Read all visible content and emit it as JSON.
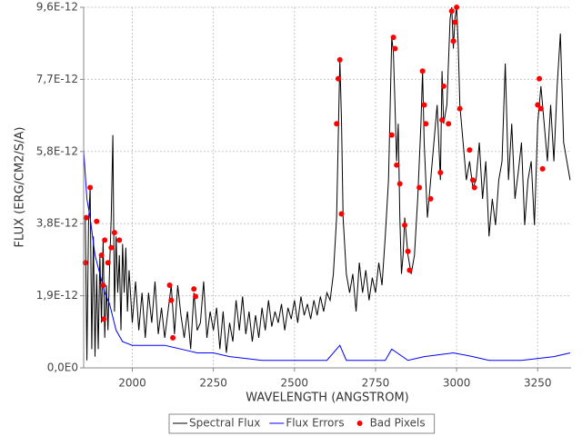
{
  "chart_data": {
    "type": "line",
    "xlabel": "WAVELENGTH (ANGSTROM)",
    "ylabel": "FLUX (ERG/CM2/S/A)",
    "xlim": [
      1850,
      3353
    ],
    "ylim": [
      0,
      9.6e-12
    ],
    "xticks": [
      2000,
      2250,
      2500,
      2750,
      3000,
      3250
    ],
    "yticks": [
      {
        "value": 0,
        "label": "0,0E0"
      },
      {
        "value": 1.92e-12,
        "label": "1,9E-12"
      },
      {
        "value": 3.84e-12,
        "label": "3,8E-12"
      },
      {
        "value": 5.76e-12,
        "label": "5,8E-12"
      },
      {
        "value": 7.68e-12,
        "label": "7,7E-12"
      },
      {
        "value": 9.6e-12,
        "label": "9,6E-12"
      }
    ],
    "grid": true,
    "legend": "bottom",
    "series": [
      {
        "name": "Spectral Flux",
        "type": "line",
        "color": "#000000",
        "x": [
          1855,
          1860,
          1865,
          1870,
          1875,
          1880,
          1885,
          1890,
          1895,
          1900,
          1905,
          1910,
          1915,
          1920,
          1925,
          1930,
          1935,
          1940,
          1945,
          1950,
          1955,
          1960,
          1965,
          1970,
          1975,
          1980,
          1985,
          1990,
          2000,
          2010,
          2020,
          2030,
          2040,
          2050,
          2060,
          2070,
          2080,
          2090,
          2100,
          2110,
          2120,
          2130,
          2140,
          2150,
          2160,
          2170,
          2180,
          2190,
          2200,
          2210,
          2220,
          2230,
          2240,
          2250,
          2260,
          2270,
          2280,
          2290,
          2300,
          2310,
          2320,
          2330,
          2340,
          2350,
          2360,
          2370,
          2380,
          2390,
          2400,
          2410,
          2420,
          2430,
          2440,
          2450,
          2460,
          2470,
          2480,
          2490,
          2500,
          2510,
          2520,
          2530,
          2540,
          2550,
          2560,
          2570,
          2580,
          2590,
          2600,
          2610,
          2620,
          2630,
          2640,
          2645,
          2650,
          2660,
          2670,
          2680,
          2690,
          2700,
          2710,
          2720,
          2730,
          2740,
          2750,
          2760,
          2770,
          2780,
          2790,
          2800,
          2805,
          2810,
          2815,
          2820,
          2825,
          2830,
          2835,
          2840,
          2850,
          2860,
          2870,
          2880,
          2890,
          2895,
          2900,
          2910,
          2920,
          2930,
          2940,
          2950,
          2955,
          2960,
          2970,
          2980,
          2985,
          2990,
          2995,
          3000,
          3005,
          3010,
          3020,
          3030,
          3040,
          3050,
          3060,
          3070,
          3080,
          3090,
          3100,
          3110,
          3120,
          3130,
          3140,
          3150,
          3160,
          3170,
          3180,
          3190,
          3200,
          3210,
          3220,
          3230,
          3240,
          3250,
          3260,
          3270,
          3280,
          3290,
          3300,
          3310,
          3320,
          3330,
          3340,
          3350
        ],
        "values": [
          4e-12,
          2e-13,
          3.8e-12,
          4.8e-12,
          5e-13,
          3.5e-12,
          3e-13,
          2.5e-12,
          5e-13,
          3e-12,
          1.2e-12,
          3.4e-12,
          8e-13,
          2.2e-12,
          1e-12,
          2.7e-12,
          4e-12,
          6.2e-12,
          1.5e-12,
          3.5e-12,
          2e-12,
          3e-12,
          1e-12,
          3.3e-12,
          2e-12,
          3.2e-12,
          1.5e-12,
          2.6e-12,
          1.2e-12,
          2.3e-12,
          1e-12,
          2e-12,
          8e-13,
          2e-12,
          1.2e-12,
          2.3e-12,
          9e-13,
          1.6e-12,
          8e-13,
          1.5e-12,
          2.2e-12,
          9e-13,
          2.2e-12,
          1.4e-12,
          8e-13,
          1.5e-12,
          5e-13,
          2e-12,
          1e-12,
          1.2e-12,
          2.3e-12,
          8e-13,
          1.5e-12,
          1e-12,
          1.6e-12,
          5e-13,
          1.5e-12,
          4e-13,
          1.2e-12,
          7e-13,
          1.8e-12,
          1e-12,
          1.9e-12,
          9e-13,
          1.5e-12,
          7e-13,
          1.4e-12,
          8e-13,
          1.6e-12,
          1e-12,
          1.8e-12,
          1.1e-12,
          1.5e-12,
          1.2e-12,
          1.7e-12,
          1e-12,
          1.6e-12,
          1.3e-12,
          1.8e-12,
          1.2e-12,
          1.9e-12,
          1.4e-12,
          1.7e-12,
          1.3e-12,
          1.8e-12,
          1.4e-12,
          1.9e-12,
          1.5e-12,
          2e-12,
          1.8e-12,
          2.5e-12,
          4e-12,
          8.2e-12,
          6.6e-12,
          4e-12,
          2.5e-12,
          2e-12,
          2.5e-12,
          1.5e-12,
          2.8e-12,
          2e-12,
          2.6e-12,
          1.8e-12,
          2.4e-12,
          2e-12,
          2.8e-12,
          2.2e-12,
          3.5e-12,
          5e-12,
          8.8e-12,
          8.4e-12,
          7e-12,
          5.5e-12,
          6.5e-12,
          4e-12,
          2.5e-12,
          3e-12,
          4e-12,
          3e-12,
          2.5e-12,
          3e-12,
          4.5e-12,
          6.5e-12,
          7.9e-12,
          6e-12,
          4e-12,
          5e-12,
          6e-12,
          7e-12,
          5e-12,
          7.9e-12,
          6.5e-12,
          7e-12,
          9.3e-12,
          9.6e-12,
          8.5e-12,
          9.3e-12,
          9.6e-12,
          8.6e-12,
          7e-12,
          6e-12,
          5e-12,
          5.5e-12,
          4.8e-12,
          5e-12,
          6e-12,
          4.5e-12,
          5.5e-12,
          3.5e-12,
          4.5e-12,
          3.8e-12,
          5e-12,
          5.5e-12,
          8.1e-12,
          5e-12,
          6.5e-12,
          4.5e-12,
          5.2e-12,
          6e-12,
          3.8e-12,
          5e-12,
          5.5e-12,
          3.8e-12,
          6.5e-12,
          7.5e-12,
          6.5e-12,
          5.5e-12,
          7e-12,
          5.5e-12,
          7.5e-12,
          8.9e-12,
          6e-12,
          5.5e-12,
          5e-12
        ]
      },
      {
        "name": "Flux Errors",
        "type": "line",
        "color": "#0000ff",
        "x": [
          1850,
          1860,
          1870,
          1885,
          1900,
          1915,
          1930,
          1950,
          1970,
          2000,
          2100,
          2150,
          2200,
          2250,
          2300,
          2400,
          2500,
          2600,
          2640,
          2660,
          2780,
          2800,
          2850,
          2900,
          2990,
          3050,
          3100,
          3200,
          3300,
          3350
        ],
        "values": [
          5.8e-12,
          4.5e-12,
          4e-12,
          3e-12,
          2.5e-12,
          2e-12,
          1.7e-12,
          1e-12,
          7e-13,
          6e-13,
          6e-13,
          5e-13,
          4e-13,
          4e-13,
          3e-13,
          2e-13,
          2e-13,
          2e-13,
          6e-13,
          2e-13,
          2e-13,
          5e-13,
          2e-13,
          3e-13,
          4e-13,
          3e-13,
          2e-13,
          2e-13,
          3e-13,
          4e-13
        ]
      },
      {
        "name": "Bad Pixels",
        "type": "scatter",
        "color": "#ff0000",
        "x": [
          1855,
          1858,
          1870,
          1890,
          1905,
          1910,
          1912,
          1915,
          1925,
          1935,
          1945,
          1960,
          2115,
          2120,
          2125,
          2190,
          2195,
          2630,
          2635,
          2640,
          2645,
          2800,
          2805,
          2810,
          2815,
          2825,
          2840,
          2850,
          2855,
          2885,
          2895,
          2900,
          2905,
          2920,
          2950,
          2955,
          2960,
          2975,
          2985,
          2990,
          2995,
          3000,
          3010,
          3040,
          3050,
          3055,
          3250,
          3255,
          3260,
          3265
        ],
        "values": [
          2.8e-12,
          4e-12,
          4.8e-12,
          3.9e-12,
          3e-12,
          2.2e-12,
          1.3e-12,
          3.4e-12,
          2.8e-12,
          3.2e-12,
          3.6e-12,
          3.4e-12,
          2.2e-12,
          1.8e-12,
          8e-13,
          2.1e-12,
          1.9e-12,
          6.5e-12,
          7.7e-12,
          8.2e-12,
          4.1e-12,
          6.2e-12,
          8.8e-12,
          8.5e-12,
          5.4e-12,
          4.9e-12,
          3.8e-12,
          3.1e-12,
          2.6e-12,
          4.8e-12,
          7.9e-12,
          7e-12,
          6.5e-12,
          4.5e-12,
          5.2e-12,
          6.6e-12,
          7.5e-12,
          6.5e-12,
          9.5e-12,
          8.7e-12,
          9.2e-12,
          9.6e-12,
          6.9e-12,
          5.8e-12,
          5e-12,
          4.8e-12,
          7e-12,
          7.7e-12,
          6.9e-12,
          5.3e-12
        ]
      }
    ]
  }
}
